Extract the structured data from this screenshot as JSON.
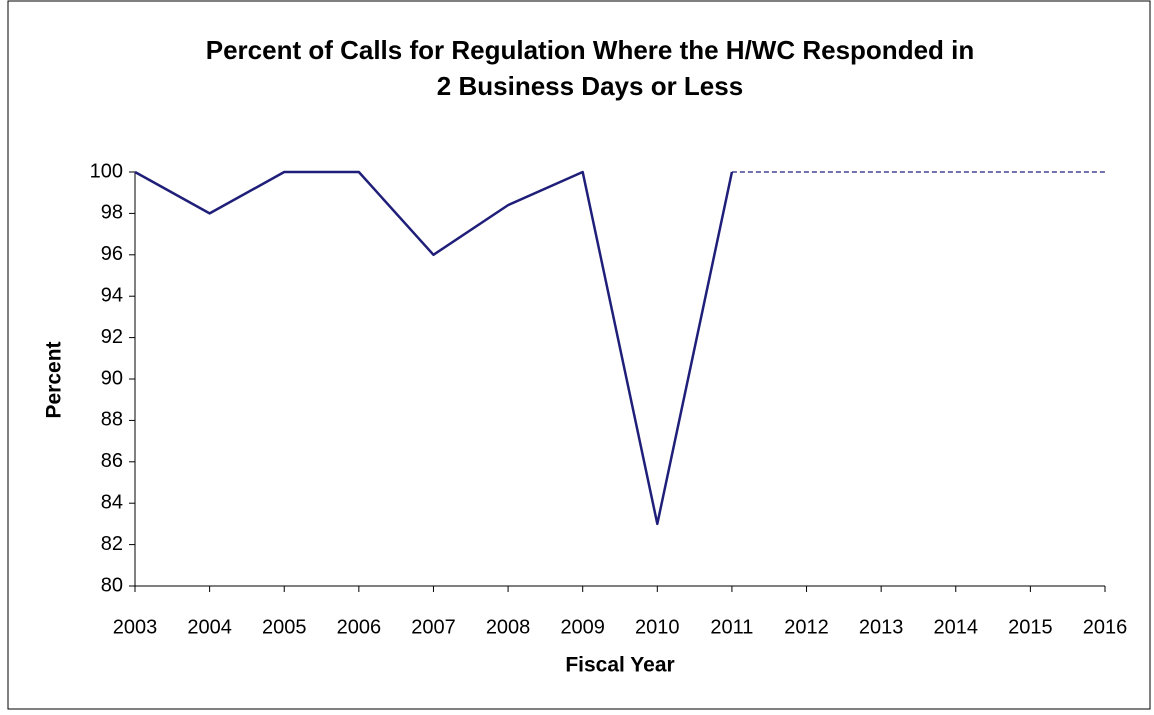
{
  "chart_data": {
    "type": "line",
    "title": [
      "Percent of Calls for Regulation Where the H/WC Responded in",
      "2 Business Days or Less"
    ],
    "x_label": "Fiscal Year",
    "y_label": "Percent",
    "x": [
      2003,
      2004,
      2005,
      2006,
      2007,
      2008,
      2009,
      2010,
      2011,
      2012,
      2013,
      2014,
      2015,
      2016
    ],
    "series": [
      {
        "color": "#1f1f7a",
        "dashed": false,
        "values": [
          100,
          98,
          100,
          100,
          96,
          98.4,
          100,
          83,
          100,
          null,
          null,
          null,
          null,
          null
        ]
      },
      {
        "color": "#1f1f7a",
        "dashed": true,
        "values": [
          null,
          null,
          null,
          null,
          null,
          null,
          null,
          null,
          100,
          100,
          100,
          100,
          100,
          100
        ]
      }
    ],
    "xlim": [
      2003,
      2016
    ],
    "xticks": [
      2003,
      2004,
      2005,
      2006,
      2007,
      2008,
      2009,
      2010,
      2011,
      2012,
      2013,
      2014,
      2015,
      2016
    ],
    "ylim": [
      80,
      100
    ],
    "yticks": [
      80,
      82,
      84,
      86,
      88,
      90,
      92,
      94,
      96,
      98,
      100
    ],
    "grid": false
  }
}
